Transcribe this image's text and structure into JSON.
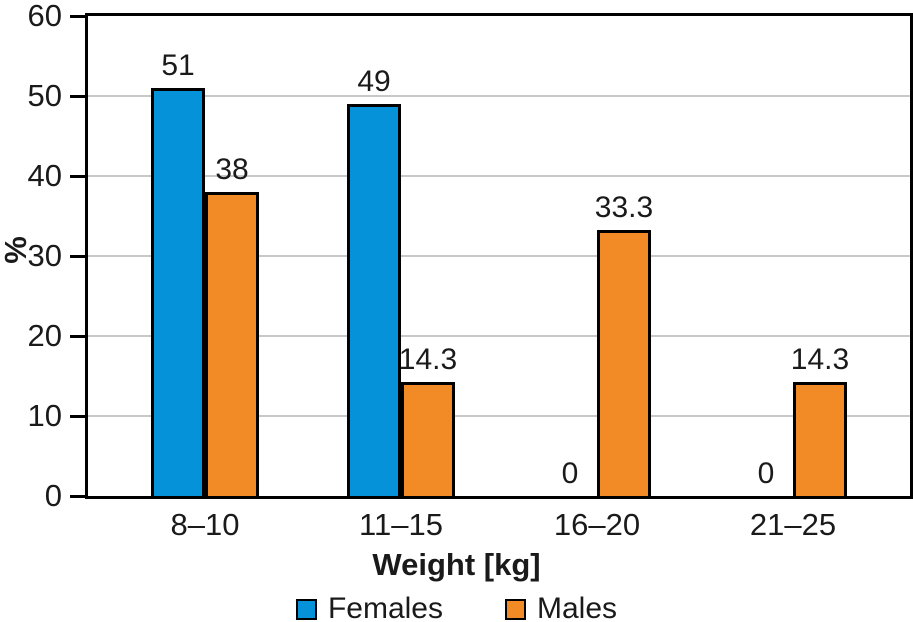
{
  "chart_data": {
    "type": "bar",
    "title": "",
    "categories": [
      "8–10",
      "11–15",
      "16–20",
      "21–25"
    ],
    "series": [
      {
        "name": "Females",
        "color": "#0692d8",
        "values": [
          51,
          49,
          0,
          0
        ]
      },
      {
        "name": "Males",
        "color": "#f28a26",
        "values": [
          38,
          14.3,
          33.3,
          14.3
        ]
      }
    ],
    "xlabel": "Weight [kg]",
    "ylabel": "%",
    "ylim": [
      0,
      60
    ],
    "yticks": [
      0,
      10,
      20,
      30,
      40,
      50,
      60
    ],
    "grid": true,
    "data_labels_shown": true,
    "legend_position": "bottom"
  },
  "colors": {
    "females": "#0692d8",
    "males": "#f28a26",
    "grid": "#c8c8c8",
    "axis": "#000000",
    "text": "#1a1a1a",
    "background": "#ffffff"
  }
}
